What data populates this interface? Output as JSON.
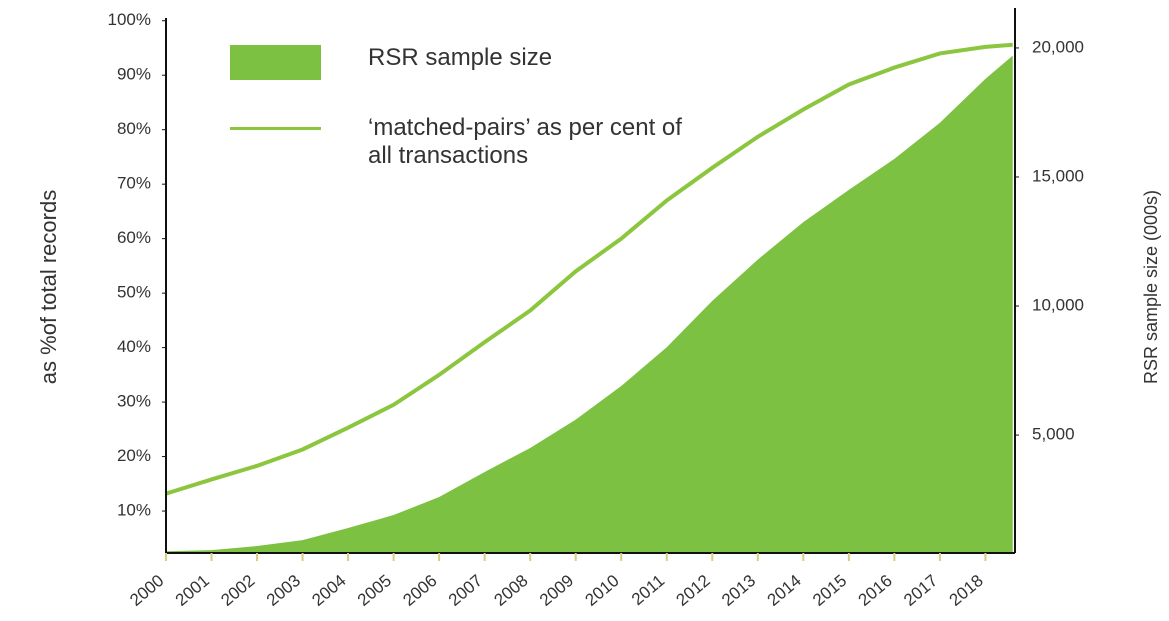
{
  "chart_data": {
    "type": "line",
    "x": [
      2000,
      2001,
      2002,
      2003,
      2004,
      2005,
      2006,
      2007,
      2008,
      2009,
      2010,
      2011,
      2012,
      2013,
      2014,
      2015,
      2016,
      2017,
      2018,
      2018.6
    ],
    "series": [
      {
        "name": "RSR  sample size",
        "type": "area",
        "axis": "y2",
        "color": "#7cc142",
        "values": [
          500,
          540,
          700,
          930,
          1400,
          1900,
          2600,
          3570,
          4500,
          5600,
          6900,
          8400,
          10200,
          11800,
          13250,
          14500,
          15700,
          17100,
          18800,
          19700
        ]
      },
      {
        "name": "‘matched-pairs’ as per cent of all transactions",
        "type": "line",
        "axis": "y",
        "color": "#8cc63f",
        "values": [
          13.2,
          15.8,
          18.3,
          21.3,
          25.3,
          29.5,
          35,
          41,
          46.8,
          54,
          60,
          67,
          73,
          78.7,
          83.7,
          88.3,
          91.4,
          94,
          95.2,
          95.6
        ]
      }
    ],
    "xlim": [
      2000,
      2018.65
    ],
    "xticks": [
      2000,
      2001,
      2002,
      2003,
      2004,
      2005,
      2006,
      2007,
      2008,
      2009,
      2010,
      2011,
      2012,
      2013,
      2014,
      2015,
      2016,
      2017,
      2018
    ],
    "ylim": [
      2.3,
      100.5
    ],
    "yticks": [
      {
        "value": 10,
        "label": "10%"
      },
      {
        "value": 20,
        "label": "20%"
      },
      {
        "value": 30,
        "label": "30%"
      },
      {
        "value": 40,
        "label": "40%"
      },
      {
        "value": 50,
        "label": "50%"
      },
      {
        "value": 60,
        "label": "60%"
      },
      {
        "value": 70,
        "label": "70%"
      },
      {
        "value": 80,
        "label": "80%"
      },
      {
        "value": 90,
        "label": "90%"
      },
      {
        "value": 100,
        "label": "100%"
      }
    ],
    "y2lim": [
      430,
      21160
    ],
    "y2ticks": [
      {
        "value": 5000,
        "label": "5,000"
      },
      {
        "value": 10000,
        "label": "10,000"
      },
      {
        "value": 15000,
        "label": "15,000"
      },
      {
        "value": 20000,
        "label": "20,000"
      }
    ],
    "ylabel": "as %of total records",
    "y2label": "RSR sample size (000s)"
  }
}
